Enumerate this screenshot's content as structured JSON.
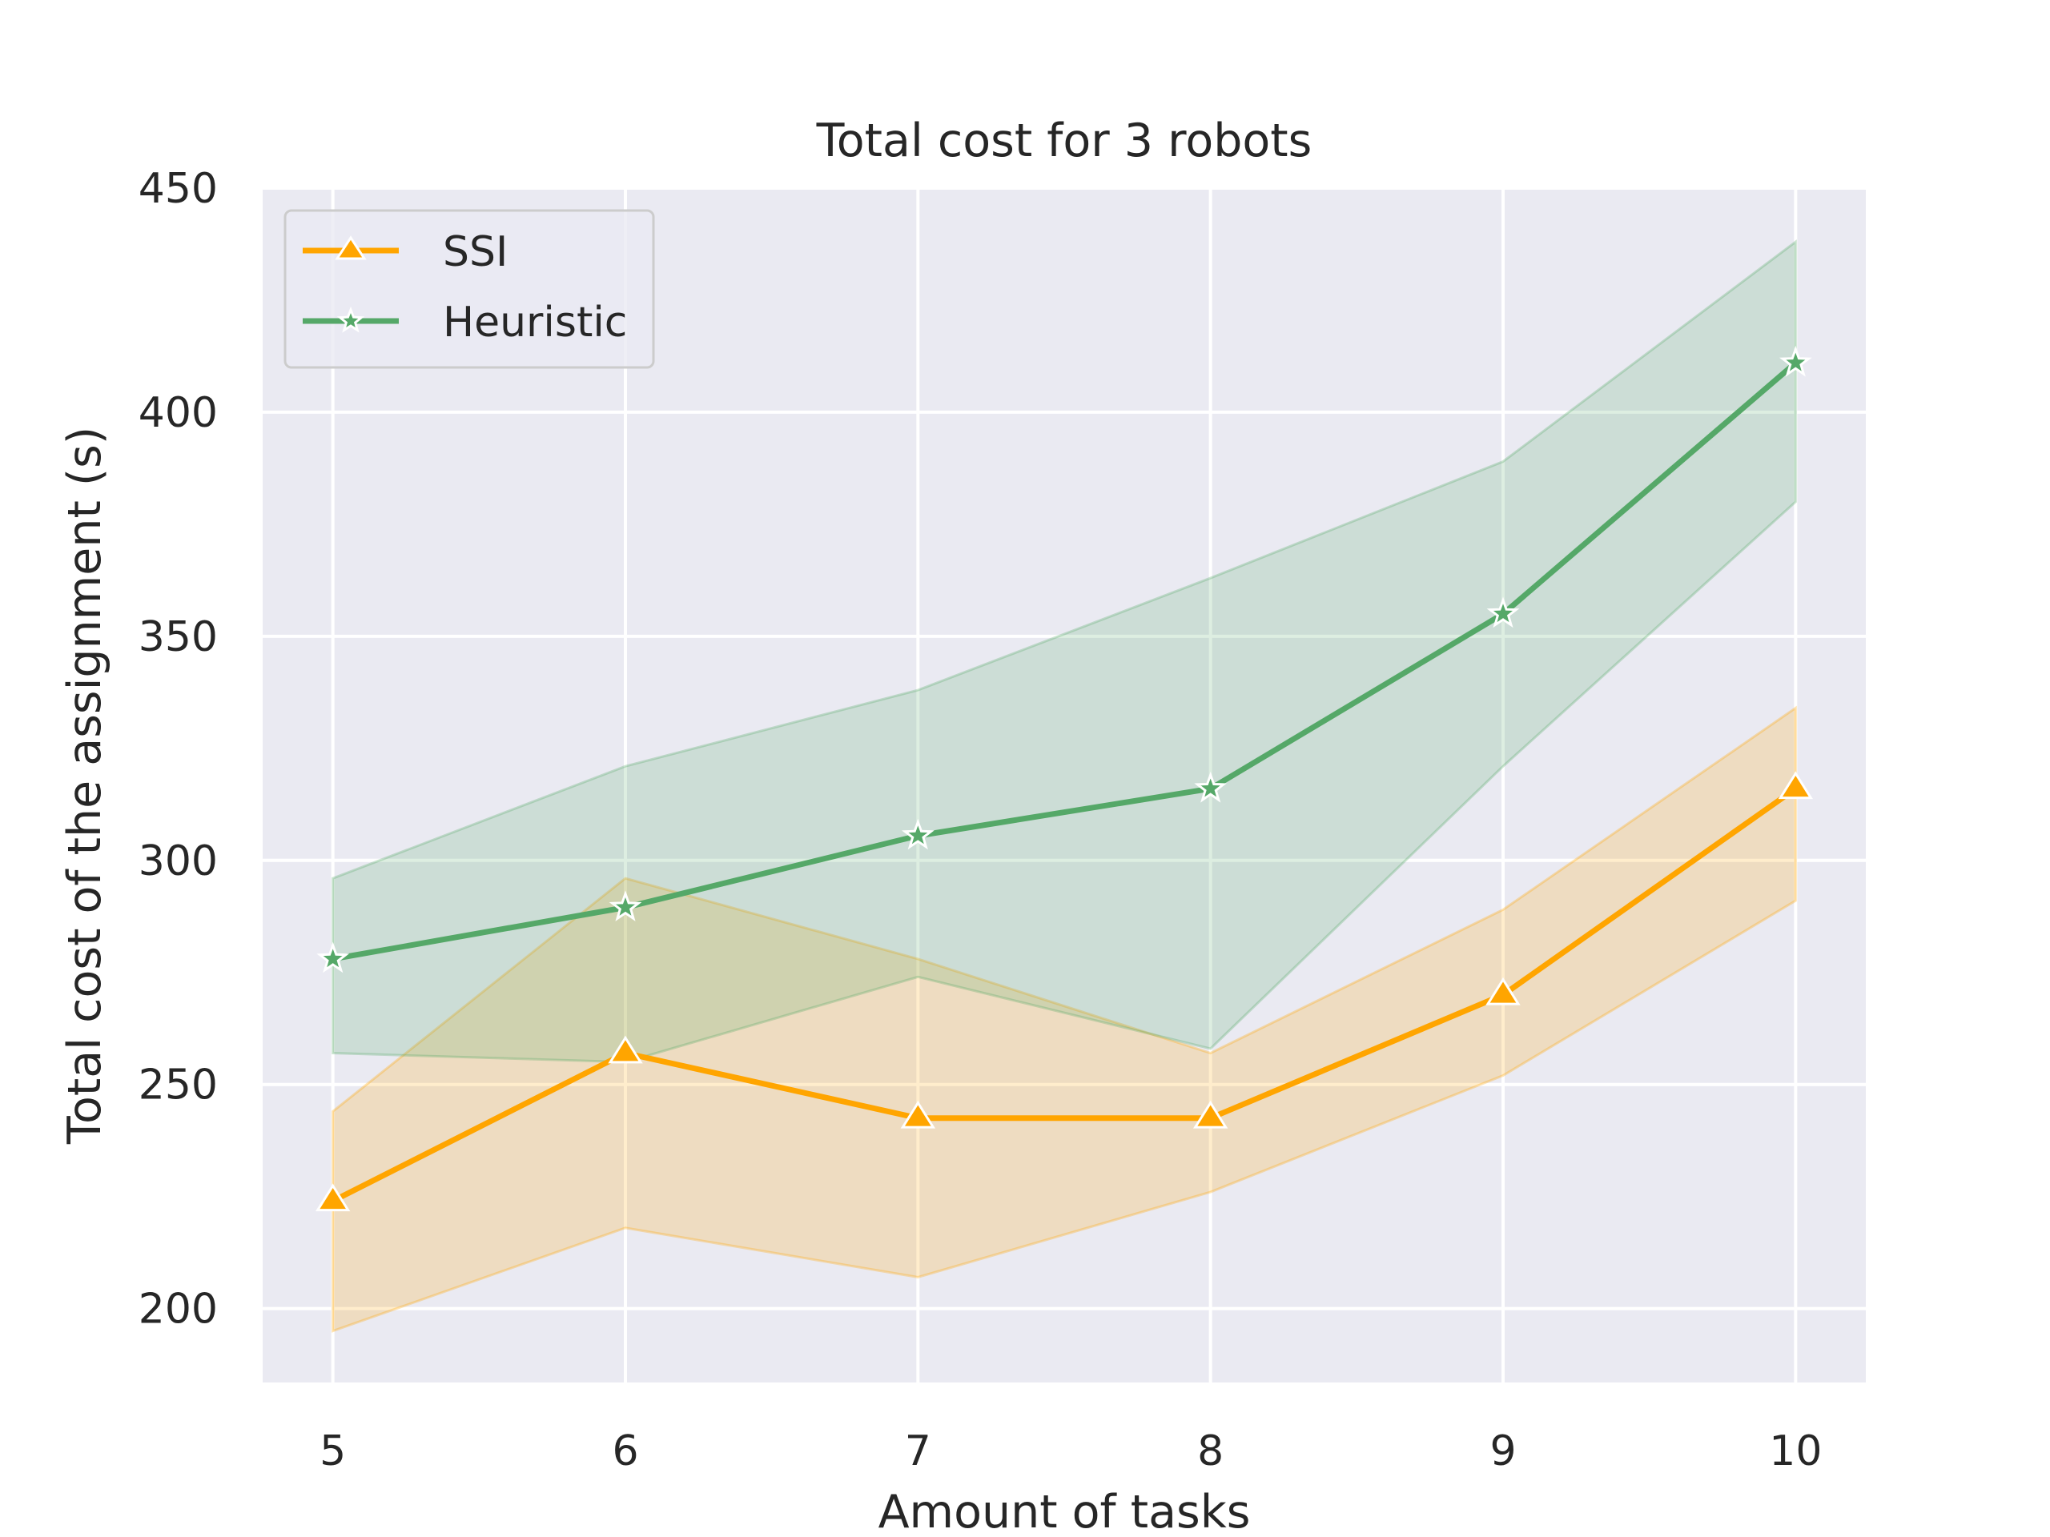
{
  "chart_data": {
    "type": "line",
    "title": "Total cost for 3 robots",
    "xlabel": "Amount of tasks",
    "ylabel": "Total cost of the assignment (s)",
    "x": [
      5,
      6,
      7,
      8,
      9,
      10
    ],
    "xlim": [
      4.76,
      10.24
    ],
    "ylim": [
      183.5,
      450
    ],
    "yticks": [
      200,
      250,
      300,
      350,
      400,
      450
    ],
    "grid": true,
    "legend_position": "top-left",
    "background_color": "#eaeaf2",
    "series": [
      {
        "name": "SSI",
        "color": "#ffa500",
        "marker": "triangle",
        "values": [
          224,
          257,
          242.5,
          242.5,
          270,
          316
        ],
        "ci_lower": [
          195,
          218,
          207,
          226,
          252,
          291
        ],
        "ci_upper": [
          244,
          296,
          278,
          257,
          289,
          334
        ]
      },
      {
        "name": "Heuristic",
        "color": "#55a868",
        "marker": "star",
        "values": [
          278,
          289.5,
          305.5,
          316,
          355,
          411
        ],
        "ci_lower": [
          257,
          255,
          274,
          258,
          321,
          380
        ],
        "ci_upper": [
          296,
          321,
          338,
          363,
          389,
          438
        ]
      }
    ]
  }
}
